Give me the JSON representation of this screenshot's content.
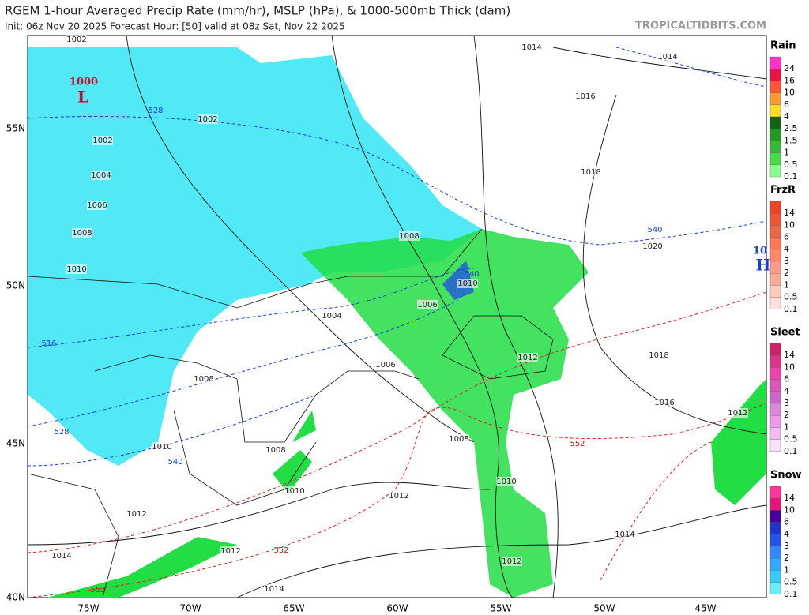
{
  "header": {
    "title": "RGEM 1-hour Averaged Precip Rate (mm/hr), MSLP (hPa), & 1000-500mb Thick (dam)",
    "subtitle": "Init: 06z Nov 20 2025   Forecast Hour: [50]   valid at 08z Sat, Nov 22 2025",
    "watermark": "TROPICALTIDBITS.COM"
  },
  "map": {
    "lat_labels": [
      "55N",
      "50N",
      "45N",
      "40N"
    ],
    "lon_labels": [
      "75W",
      "70W",
      "65W",
      "60W",
      "55W",
      "50W",
      "45W"
    ],
    "isobar_labels": [
      1002,
      1014,
      1014,
      1016,
      1002,
      1002,
      1004,
      1006,
      1008,
      1018,
      1008,
      1020,
      1010,
      1010,
      1006,
      1004,
      1018,
      1012,
      1006,
      1008,
      1016,
      1012,
      1008,
      1010,
      1008,
      1010,
      1012,
      1010,
      1012,
      1014,
      1012,
      1014,
      1012,
      1014
    ],
    "thickness_labels_blue": [
      528,
      540,
      540,
      516,
      528,
      540
    ],
    "thickness_labels_red": [
      552,
      552,
      552
    ],
    "low_center": {
      "pressure": 1000,
      "symbol": "L"
    },
    "high_center": {
      "pressure": "10",
      "symbol": "H"
    }
  },
  "legend": [
    {
      "title": "Rain",
      "labels": [
        24,
        16,
        10,
        6,
        4,
        2.5,
        1.5,
        1,
        0.5,
        0.1
      ]
    },
    {
      "title": "FrzR",
      "labels": [
        14,
        10,
        6,
        4,
        3,
        2,
        1,
        0.5,
        0.1
      ]
    },
    {
      "title": "Sleet",
      "labels": [
        14,
        10,
        6,
        4,
        3,
        2,
        1,
        0.5,
        0.1
      ]
    },
    {
      "title": "Snow",
      "labels": [
        14,
        10,
        6,
        4,
        3,
        2,
        1,
        0.5,
        0.1
      ]
    }
  ]
}
